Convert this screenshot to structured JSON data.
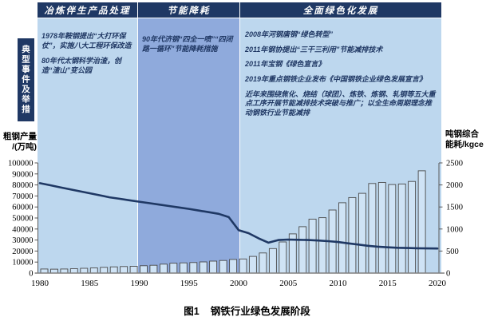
{
  "figure": {
    "caption_prefix": "图1",
    "caption_title": "钢铁行业绿色发展阶段"
  },
  "sidebar": {
    "label": "典型事件及举措"
  },
  "stages": [
    {
      "header": "冶炼伴生产品处理",
      "period": [
        1980,
        1990
      ],
      "band_color": "#BDD7EE",
      "events": [
        "1978年鞍钢提出“大打环保仗”，实施八大工程环保改造",
        "80年代太钢科学治渣，创造“渣山”变公园"
      ]
    },
    {
      "header": "节能降耗",
      "period": [
        1990,
        2000
      ],
      "band_color": "#8FAADC",
      "events": [
        "90年代济钢“四全一喷”“四闭路一循环”节能降耗措施"
      ]
    },
    {
      "header": "全面绿色化发展",
      "period": [
        2000,
        2020
      ],
      "band_color": "#BDD7EE",
      "events": [
        "2008年河钢唐钢“绿色转型”",
        "2011年钢协提出“三干三利用”节能减排技术",
        "2011年宝钢《绿色宣言》",
        "2019年重点钢铁企业发布《中国钢铁企业绿色发展宣言》",
        "近年来围绕焦化、烧结（球团）、炼铁、炼钢、轧钢等五大重点工序开展节能减排技术突破与推广；以全生命周期理念推动钢铁行业节能减排"
      ]
    }
  ],
  "colors": {
    "header_navy": "#1F3864",
    "band_light": "#BDD7EE",
    "band_medium": "#8FAADC",
    "line_navy": "#1F3864",
    "bar_fill": "#CFE3F5",
    "bar_stroke": "#4A4A4A",
    "axis_gray": "#808080"
  },
  "chart_data": {
    "type": "combo",
    "x_axis": {
      "ticks": [
        1980,
        1985,
        1990,
        1995,
        2000,
        2005,
        2010,
        2015,
        2020
      ],
      "range": [
        1980,
        2020
      ]
    },
    "left_axis": {
      "title": "粗钢产量/(万吨)",
      "title_lines": [
        "粗钢产量",
        "/(万吨)"
      ],
      "range": [
        0,
        100000
      ],
      "tick_step": 10000
    },
    "right_axis": {
      "title": "吨钢综合能耗/kgce",
      "title_lines": [
        "吨钢综合",
        "能耗/kgce"
      ],
      "range": [
        0,
        2500
      ],
      "tick_step": 500
    },
    "series": [
      {
        "name": "粗钢产量",
        "type": "bar",
        "axis": "left",
        "x": [
          1980,
          1981,
          1982,
          1983,
          1984,
          1985,
          1986,
          1987,
          1988,
          1989,
          1990,
          1991,
          1992,
          1993,
          1994,
          1995,
          1996,
          1997,
          1998,
          1999,
          2000,
          2001,
          2002,
          2003,
          2004,
          2005,
          2006,
          2007,
          2008,
          2009,
          2010,
          2011,
          2012,
          2013,
          2014,
          2015,
          2016,
          2017,
          2018
        ],
        "values": [
          3712,
          3560,
          3716,
          4002,
          4384,
          4679,
          5221,
          5628,
          5943,
          6159,
          6635,
          7100,
          8094,
          8956,
          9261,
          9536,
          10124,
          10891,
          11459,
          12426,
          12850,
          15163,
          18237,
          22234,
          28291,
          35579,
          42102,
          48971,
          50306,
          57218,
          63874,
          68528,
          72388,
          81313,
          82231,
          80383,
          80837,
          83173,
          92826
        ]
      },
      {
        "name": "吨钢综合能耗",
        "type": "line",
        "axis": "right",
        "x": [
          1980,
          1981,
          1982,
          1983,
          1984,
          1985,
          1986,
          1987,
          1988,
          1989,
          1990,
          1991,
          1992,
          1993,
          1994,
          1995,
          1996,
          1997,
          1998,
          1999,
          2000,
          2001,
          2002,
          2003,
          2004,
          2005,
          2006,
          2007,
          2008,
          2009,
          2010,
          2011,
          2012,
          2013,
          2014,
          2015,
          2016,
          2017,
          2018,
          2019,
          2020
        ],
        "values": [
          2040,
          1994,
          1948,
          1903,
          1857,
          1812,
          1766,
          1720,
          1687,
          1653,
          1620,
          1587,
          1554,
          1522,
          1489,
          1456,
          1419,
          1382,
          1345,
          1270,
          975,
          905,
          790,
          690,
          750,
          760,
          756,
          750,
          740,
          724,
          705,
          676,
          648,
          620,
          600,
          585,
          575,
          568,
          563,
          560,
          558
        ]
      }
    ],
    "grid": false,
    "legend": "none"
  }
}
